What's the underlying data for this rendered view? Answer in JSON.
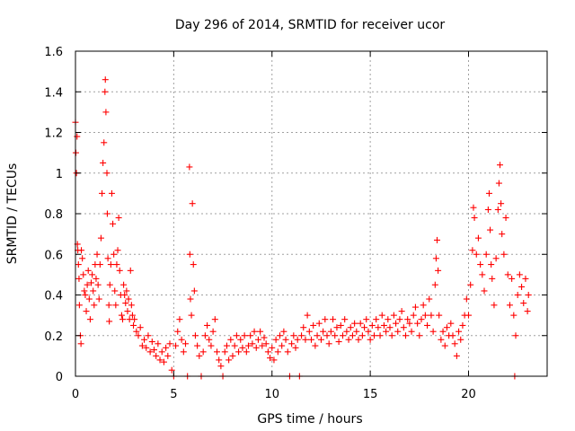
{
  "chart_data": {
    "type": "scatter",
    "title": "Day 296 of 2014, SRMTID for receiver ucor",
    "xlabel": "GPS time / hours",
    "ylabel": "SRMTID / TECUs",
    "xlim": [
      0,
      24
    ],
    "ylim": [
      0,
      1.6
    ],
    "xticks": [
      0,
      5,
      10,
      15,
      20
    ],
    "xtick_labels": [
      "0",
      "5",
      "10",
      "15",
      "20"
    ],
    "yticks": [
      0,
      0.2,
      0.4,
      0.6,
      0.8,
      1.0,
      1.2,
      1.4,
      1.6
    ],
    "ytick_labels": [
      "0",
      "0.2",
      "0.4",
      "0.6",
      "0.8",
      "1",
      "1.2",
      "1.4",
      "1.6"
    ],
    "grid": true,
    "marker": "+",
    "series": [
      {
        "name": "SRMTID",
        "color": "#ff0000",
        "points": [
          [
            0.0,
            1.25
          ],
          [
            0.02,
            1.1
          ],
          [
            0.05,
            1.0
          ],
          [
            0.08,
            1.18
          ],
          [
            0.1,
            0.65
          ],
          [
            0.12,
            0.62
          ],
          [
            0.15,
            0.55
          ],
          [
            0.18,
            0.48
          ],
          [
            0.2,
            0.35
          ],
          [
            0.25,
            0.2
          ],
          [
            0.28,
            0.16
          ],
          [
            0.3,
            0.62
          ],
          [
            0.35,
            0.58
          ],
          [
            0.4,
            0.5
          ],
          [
            0.45,
            0.42
          ],
          [
            0.5,
            0.4
          ],
          [
            0.55,
            0.32
          ],
          [
            0.6,
            0.45
          ],
          [
            0.65,
            0.52
          ],
          [
            0.7,
            0.38
          ],
          [
            0.75,
            0.28
          ],
          [
            0.8,
            0.46
          ],
          [
            0.85,
            0.5
          ],
          [
            0.9,
            0.42
          ],
          [
            0.95,
            0.35
          ],
          [
            1.0,
            0.55
          ],
          [
            1.05,
            0.48
          ],
          [
            1.1,
            0.6
          ],
          [
            1.15,
            0.45
          ],
          [
            1.2,
            0.38
          ],
          [
            1.25,
            0.55
          ],
          [
            1.3,
            0.68
          ],
          [
            1.35,
            0.9
          ],
          [
            1.4,
            1.05
          ],
          [
            1.45,
            1.15
          ],
          [
            1.5,
            1.4
          ],
          [
            1.52,
            1.46
          ],
          [
            1.55,
            1.3
          ],
          [
            1.6,
            1.0
          ],
          [
            1.62,
            0.8
          ],
          [
            1.65,
            0.58
          ],
          [
            1.7,
            0.35
          ],
          [
            1.72,
            0.27
          ],
          [
            1.75,
            0.45
          ],
          [
            1.8,
            0.55
          ],
          [
            1.85,
            0.9
          ],
          [
            1.9,
            0.75
          ],
          [
            1.95,
            0.6
          ],
          [
            2.0,
            0.42
          ],
          [
            2.05,
            0.35
          ],
          [
            2.1,
            0.55
          ],
          [
            2.15,
            0.62
          ],
          [
            2.2,
            0.78
          ],
          [
            2.25,
            0.52
          ],
          [
            2.3,
            0.4
          ],
          [
            2.35,
            0.3
          ],
          [
            2.4,
            0.28
          ],
          [
            2.45,
            0.45
          ],
          [
            2.5,
            0.4
          ],
          [
            2.55,
            0.36
          ],
          [
            2.6,
            0.42
          ],
          [
            2.65,
            0.32
          ],
          [
            2.7,
            0.38
          ],
          [
            2.75,
            0.28
          ],
          [
            2.8,
            0.52
          ],
          [
            2.85,
            0.35
          ],
          [
            2.9,
            0.3
          ],
          [
            2.95,
            0.25
          ],
          [
            3.0,
            0.28
          ],
          [
            3.1,
            0.22
          ],
          [
            3.2,
            0.2
          ],
          [
            3.3,
            0.24
          ],
          [
            3.4,
            0.15
          ],
          [
            3.5,
            0.18
          ],
          [
            3.6,
            0.14
          ],
          [
            3.7,
            0.2
          ],
          [
            3.8,
            0.12
          ],
          [
            3.9,
            0.17
          ],
          [
            4.0,
            0.13
          ],
          [
            4.1,
            0.1
          ],
          [
            4.2,
            0.16
          ],
          [
            4.3,
            0.08
          ],
          [
            4.4,
            0.12
          ],
          [
            4.5,
            0.07
          ],
          [
            4.6,
            0.14
          ],
          [
            4.7,
            0.1
          ],
          [
            4.8,
            0.16
          ],
          [
            4.9,
            0.03
          ],
          [
            5.0,
            0.0
          ],
          [
            5.1,
            0.15
          ],
          [
            5.2,
            0.22
          ],
          [
            5.3,
            0.28
          ],
          [
            5.4,
            0.18
          ],
          [
            5.5,
            0.12
          ],
          [
            5.6,
            0.16
          ],
          [
            5.7,
            0.0
          ],
          [
            5.8,
            1.03
          ],
          [
            5.82,
            0.6
          ],
          [
            5.85,
            0.38
          ],
          [
            5.9,
            0.3
          ],
          [
            5.95,
            0.85
          ],
          [
            6.0,
            0.55
          ],
          [
            6.05,
            0.42
          ],
          [
            6.1,
            0.2
          ],
          [
            6.2,
            0.15
          ],
          [
            6.3,
            0.1
          ],
          [
            6.4,
            0.0
          ],
          [
            6.5,
            0.12
          ],
          [
            6.6,
            0.2
          ],
          [
            6.7,
            0.25
          ],
          [
            6.8,
            0.18
          ],
          [
            6.9,
            0.15
          ],
          [
            7.0,
            0.22
          ],
          [
            7.1,
            0.28
          ],
          [
            7.2,
            0.12
          ],
          [
            7.3,
            0.08
          ],
          [
            7.4,
            0.05
          ],
          [
            7.5,
            0.0
          ],
          [
            7.6,
            0.12
          ],
          [
            7.7,
            0.15
          ],
          [
            7.8,
            0.08
          ],
          [
            7.9,
            0.18
          ],
          [
            8.0,
            0.1
          ],
          [
            8.1,
            0.15
          ],
          [
            8.2,
            0.2
          ],
          [
            8.3,
            0.12
          ],
          [
            8.4,
            0.18
          ],
          [
            8.5,
            0.14
          ],
          [
            8.6,
            0.2
          ],
          [
            8.7,
            0.12
          ],
          [
            8.8,
            0.15
          ],
          [
            8.9,
            0.2
          ],
          [
            9.0,
            0.16
          ],
          [
            9.1,
            0.22
          ],
          [
            9.2,
            0.14
          ],
          [
            9.3,
            0.18
          ],
          [
            9.4,
            0.22
          ],
          [
            9.5,
            0.15
          ],
          [
            9.6,
            0.19
          ],
          [
            9.7,
            0.16
          ],
          [
            9.8,
            0.12
          ],
          [
            9.9,
            0.09
          ],
          [
            10.0,
            0.14
          ],
          [
            10.1,
            0.08
          ],
          [
            10.2,
            0.18
          ],
          [
            10.3,
            0.12
          ],
          [
            10.4,
            0.2
          ],
          [
            10.5,
            0.15
          ],
          [
            10.6,
            0.22
          ],
          [
            10.7,
            0.18
          ],
          [
            10.8,
            0.12
          ],
          [
            10.9,
            0.0
          ],
          [
            11.0,
            0.16
          ],
          [
            11.1,
            0.2
          ],
          [
            11.2,
            0.14
          ],
          [
            11.3,
            0.18
          ],
          [
            11.4,
            0.0
          ],
          [
            11.5,
            0.2
          ],
          [
            11.6,
            0.24
          ],
          [
            11.7,
            0.18
          ],
          [
            11.8,
            0.3
          ],
          [
            11.9,
            0.22
          ],
          [
            12.0,
            0.18
          ],
          [
            12.1,
            0.25
          ],
          [
            12.2,
            0.15
          ],
          [
            12.3,
            0.2
          ],
          [
            12.4,
            0.26
          ],
          [
            12.5,
            0.18
          ],
          [
            12.6,
            0.22
          ],
          [
            12.7,
            0.28
          ],
          [
            12.8,
            0.2
          ],
          [
            12.9,
            0.16
          ],
          [
            13.0,
            0.22
          ],
          [
            13.1,
            0.28
          ],
          [
            13.2,
            0.2
          ],
          [
            13.3,
            0.24
          ],
          [
            13.4,
            0.17
          ],
          [
            13.5,
            0.25
          ],
          [
            13.6,
            0.2
          ],
          [
            13.7,
            0.28
          ],
          [
            13.8,
            0.22
          ],
          [
            13.9,
            0.18
          ],
          [
            14.0,
            0.24
          ],
          [
            14.1,
            0.2
          ],
          [
            14.2,
            0.26
          ],
          [
            14.3,
            0.22
          ],
          [
            14.4,
            0.18
          ],
          [
            14.5,
            0.26
          ],
          [
            14.6,
            0.2
          ],
          [
            14.7,
            0.24
          ],
          [
            14.8,
            0.28
          ],
          [
            14.9,
            0.22
          ],
          [
            15.0,
            0.18
          ],
          [
            15.1,
            0.25
          ],
          [
            15.2,
            0.2
          ],
          [
            15.3,
            0.28
          ],
          [
            15.4,
            0.24
          ],
          [
            15.5,
            0.2
          ],
          [
            15.6,
            0.3
          ],
          [
            15.7,
            0.25
          ],
          [
            15.8,
            0.22
          ],
          [
            15.9,
            0.28
          ],
          [
            16.0,
            0.24
          ],
          [
            16.1,
            0.2
          ],
          [
            16.2,
            0.3
          ],
          [
            16.3,
            0.26
          ],
          [
            16.4,
            0.22
          ],
          [
            16.5,
            0.28
          ],
          [
            16.6,
            0.32
          ],
          [
            16.7,
            0.24
          ],
          [
            16.8,
            0.2
          ],
          [
            16.9,
            0.28
          ],
          [
            17.0,
            0.26
          ],
          [
            17.1,
            0.22
          ],
          [
            17.2,
            0.3
          ],
          [
            17.3,
            0.34
          ],
          [
            17.4,
            0.26
          ],
          [
            17.5,
            0.2
          ],
          [
            17.6,
            0.28
          ],
          [
            17.7,
            0.35
          ],
          [
            17.8,
            0.3
          ],
          [
            17.9,
            0.25
          ],
          [
            18.0,
            0.38
          ],
          [
            18.1,
            0.3
          ],
          [
            18.2,
            0.22
          ],
          [
            18.3,
            0.45
          ],
          [
            18.35,
            0.58
          ],
          [
            18.4,
            0.67
          ],
          [
            18.45,
            0.52
          ],
          [
            18.5,
            0.3
          ],
          [
            18.6,
            0.18
          ],
          [
            18.7,
            0.22
          ],
          [
            18.8,
            0.15
          ],
          [
            18.9,
            0.24
          ],
          [
            19.0,
            0.2
          ],
          [
            19.1,
            0.26
          ],
          [
            19.2,
            0.2
          ],
          [
            19.3,
            0.16
          ],
          [
            19.4,
            0.1
          ],
          [
            19.5,
            0.22
          ],
          [
            19.6,
            0.18
          ],
          [
            19.7,
            0.25
          ],
          [
            19.8,
            0.3
          ],
          [
            19.9,
            0.38
          ],
          [
            20.0,
            0.3
          ],
          [
            20.1,
            0.45
          ],
          [
            20.2,
            0.62
          ],
          [
            20.25,
            0.83
          ],
          [
            20.3,
            0.78
          ],
          [
            20.4,
            0.6
          ],
          [
            20.5,
            0.68
          ],
          [
            20.6,
            0.55
          ],
          [
            20.7,
            0.5
          ],
          [
            20.8,
            0.42
          ],
          [
            20.9,
            0.6
          ],
          [
            21.0,
            0.82
          ],
          [
            21.05,
            0.9
          ],
          [
            21.1,
            0.72
          ],
          [
            21.15,
            0.55
          ],
          [
            21.2,
            0.48
          ],
          [
            21.3,
            0.35
          ],
          [
            21.4,
            0.58
          ],
          [
            21.5,
            0.82
          ],
          [
            21.55,
            0.95
          ],
          [
            21.6,
            1.04
          ],
          [
            21.65,
            0.85
          ],
          [
            21.7,
            0.7
          ],
          [
            21.8,
            0.6
          ],
          [
            21.9,
            0.78
          ],
          [
            22.0,
            0.5
          ],
          [
            22.1,
            0.35
          ],
          [
            22.2,
            0.48
          ],
          [
            22.3,
            0.3
          ],
          [
            22.35,
            0.0
          ],
          [
            22.4,
            0.2
          ],
          [
            22.5,
            0.4
          ],
          [
            22.6,
            0.5
          ],
          [
            22.7,
            0.44
          ],
          [
            22.8,
            0.36
          ],
          [
            22.9,
            0.48
          ],
          [
            23.0,
            0.32
          ],
          [
            23.05,
            0.4
          ]
        ]
      }
    ]
  }
}
